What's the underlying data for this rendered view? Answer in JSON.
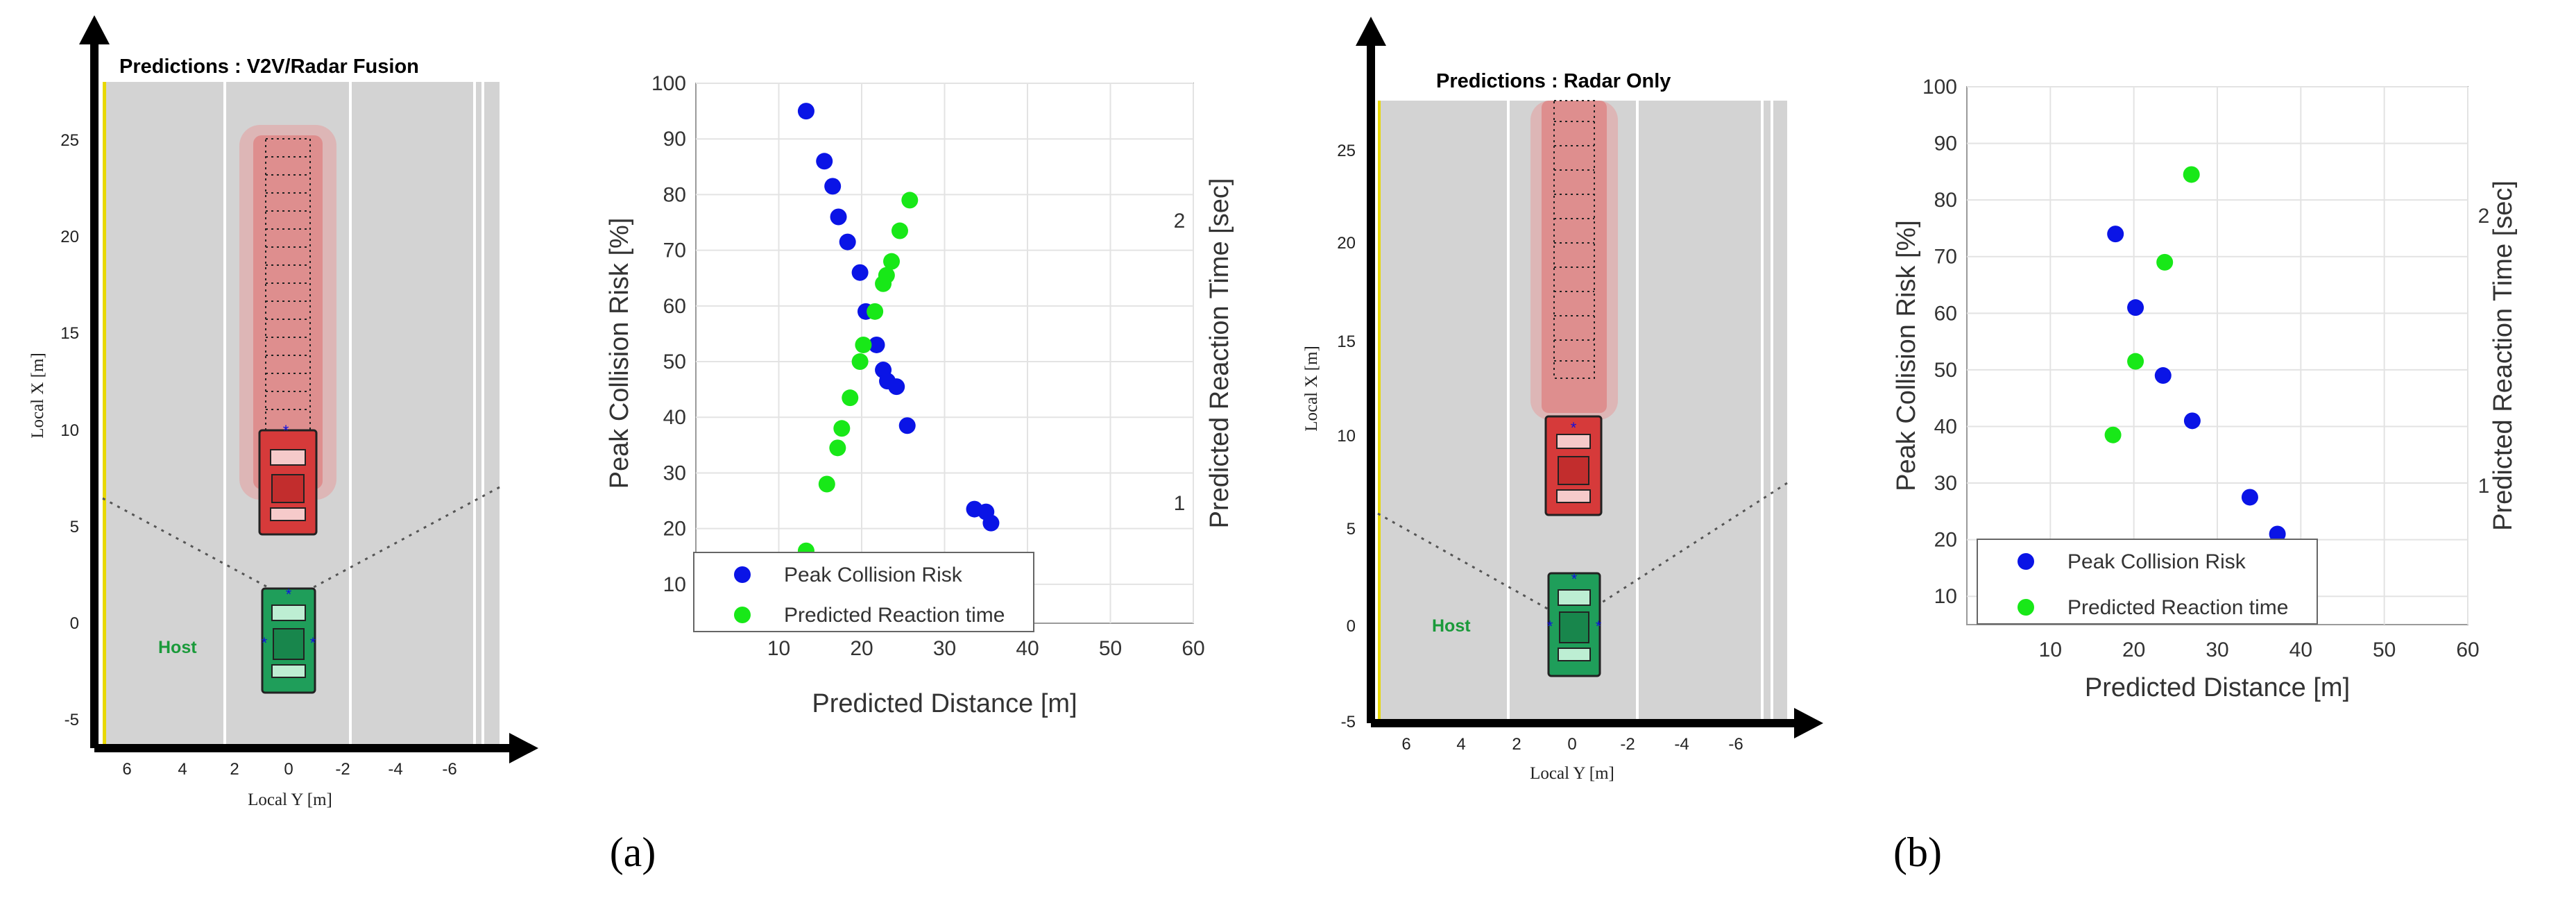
{
  "panels": [
    {
      "label": "(a)",
      "scene": {
        "title": "Predictions : V2V/Radar Fusion",
        "xlabel": "Local Y [m]",
        "ylabel": "Local X [m]",
        "host_label": "Host",
        "x_ticks": [
          "6",
          "4",
          "2",
          "0",
          "-2",
          "-4",
          "-6"
        ],
        "y_ticks": [
          "25",
          "20",
          "15",
          "10",
          "5",
          "0",
          "-5"
        ]
      }
    },
    {
      "label": "(b)",
      "scene": {
        "title": "Predictions : Radar Only",
        "xlabel": "Local Y [m]",
        "ylabel": "Local X [m]",
        "host_label": "Host",
        "x_ticks": [
          "6",
          "4",
          "2",
          "0",
          "-2",
          "-4",
          "-6"
        ],
        "y_ticks": [
          "25",
          "20",
          "15",
          "10",
          "5",
          "0",
          "-5"
        ]
      }
    }
  ],
  "colors": {
    "road": "#d3d3d3",
    "lane_line": "#ffffff",
    "edge_line": "#e8d800",
    "host_car": "#1f9e5a",
    "target_car": "#d63a3a",
    "prediction_glow": "#e89292",
    "risk": "#0a14e6",
    "reaction": "#18e818"
  },
  "chart_data": [
    {
      "type": "scatter",
      "title": "",
      "xlabel": "Predicted Distance [m]",
      "ylabel": "Peak Collision Risk [%]",
      "y2label": "Predicted Reaction Time [sec]",
      "xlim": [
        0,
        60
      ],
      "ylim": [
        3,
        100
      ],
      "x_ticks": [
        10,
        20,
        30,
        40,
        50,
        60
      ],
      "y_ticks": [
        10,
        20,
        30,
        40,
        50,
        60,
        70,
        80,
        90,
        100
      ],
      "y2_ticks": [
        1,
        2
      ],
      "grid": true,
      "legend_position": "bottom-left",
      "series": [
        {
          "name": "Peak Collision Risk",
          "color": "#0a14e6",
          "points": [
            [
              13.3,
              95
            ],
            [
              15.5,
              86
            ],
            [
              16.5,
              81.5
            ],
            [
              17.2,
              76
            ],
            [
              18.3,
              71.5
            ],
            [
              19.8,
              66
            ],
            [
              20.5,
              59
            ],
            [
              21.8,
              53
            ],
            [
              22.6,
              48.5
            ],
            [
              23.1,
              46.5
            ],
            [
              24.2,
              45.5
            ],
            [
              25.5,
              38.5
            ],
            [
              33.6,
              23.5
            ],
            [
              35.0,
              23
            ],
            [
              35.6,
              21
            ]
          ]
        },
        {
          "name": "Predicted Reaction time",
          "color": "#18e818",
          "points": [
            [
              13.3,
              16
            ],
            [
              15.8,
              28
            ],
            [
              17.1,
              34.5
            ],
            [
              17.6,
              38
            ],
            [
              18.6,
              43.5
            ],
            [
              19.8,
              50
            ],
            [
              20.2,
              53
            ],
            [
              21.6,
              59
            ],
            [
              22.6,
              64
            ],
            [
              23.0,
              65.5
            ],
            [
              23.6,
              68
            ],
            [
              24.6,
              73.5
            ],
            [
              25.8,
              79
            ]
          ]
        }
      ]
    },
    {
      "type": "scatter",
      "title": "",
      "xlabel": "Predicted Distance [m]",
      "ylabel": "Peak Collision Risk [%]",
      "y2label": "Predicted Reaction Time [sec]",
      "xlim": [
        0,
        60
      ],
      "ylim": [
        5,
        100
      ],
      "x_ticks": [
        10,
        20,
        30,
        40,
        50,
        60
      ],
      "y_ticks": [
        10,
        20,
        30,
        40,
        50,
        60,
        70,
        80,
        90,
        100
      ],
      "y2_ticks": [
        1,
        2
      ],
      "grid": true,
      "legend_position": "bottom-left",
      "series": [
        {
          "name": "Peak Collision Risk",
          "color": "#0a14e6",
          "points": [
            [
              17.8,
              74
            ],
            [
              20.2,
              61
            ],
            [
              23.5,
              49
            ],
            [
              27,
              41
            ],
            [
              33.9,
              27.5
            ],
            [
              37.2,
              21
            ],
            [
              37.4,
              19
            ]
          ]
        },
        {
          "name": "Predicted Reaction time",
          "color": "#18e818",
          "points": [
            [
              17.5,
              38.5
            ],
            [
              20.2,
              51.5
            ],
            [
              23.7,
              69
            ],
            [
              26.9,
              84.5
            ]
          ]
        }
      ]
    }
  ]
}
